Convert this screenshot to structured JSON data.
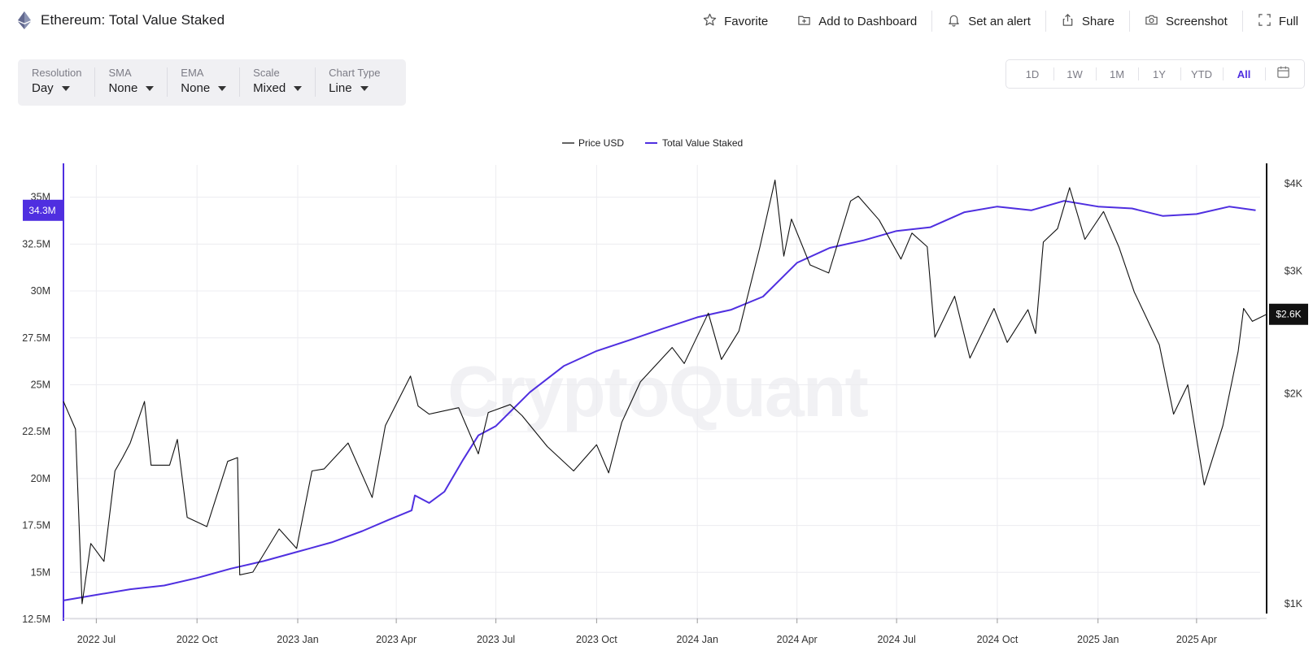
{
  "header": {
    "title": "Ethereum: Total Value Staked",
    "actions": [
      {
        "label": "Favorite",
        "icon": "star-icon"
      },
      {
        "label": "Add to Dashboard",
        "icon": "dashboard-add-icon"
      },
      {
        "label": "Set an alert",
        "icon": "bell-icon"
      },
      {
        "label": "Share",
        "icon": "share-icon"
      },
      {
        "label": "Screenshot",
        "icon": "camera-icon"
      },
      {
        "label": "Full",
        "icon": "fullscreen-icon"
      }
    ]
  },
  "settings": [
    {
      "label": "Resolution",
      "value": "Day"
    },
    {
      "label": "SMA",
      "value": "None"
    },
    {
      "label": "EMA",
      "value": "None"
    },
    {
      "label": "Scale",
      "value": "Mixed"
    },
    {
      "label": "Chart Type",
      "value": "Line"
    }
  ],
  "ranges": {
    "items": [
      "1D",
      "1W",
      "1M",
      "1Y",
      "YTD",
      "All"
    ],
    "active": "All",
    "calendar_icon": "calendar-icon"
  },
  "colors": {
    "accent": "#4f2fe0",
    "price_line": "#111111",
    "grid": "#ececf0"
  },
  "chart_data": {
    "type": "line",
    "title": "",
    "watermark": "CryptoQuant",
    "legend": {
      "placement": "top-center",
      "entries": [
        "Price USD",
        "Total Value Staked"
      ]
    },
    "x_ticks": [
      "2022 Jul",
      "2022 Oct",
      "2023 Jan",
      "2023 Apr",
      "2023 Jul",
      "2023 Oct",
      "2024 Jan",
      "2024 Apr",
      "2024 Jul",
      "2024 Oct",
      "2025 Jan",
      "2025 Apr"
    ],
    "x_range": [
      "2022-06-01",
      "2025-06-04"
    ],
    "left_axis": {
      "ticks": [
        "12.5M",
        "15M",
        "17.5M",
        "20M",
        "22.5M",
        "25M",
        "27.5M",
        "30M",
        "32.5M",
        "35M"
      ],
      "range": [
        12.5,
        36.5
      ],
      "unit": "M",
      "scale": "linear"
    },
    "right_axis": {
      "ticks": [
        "$1K",
        "$2K",
        "$3K",
        "$4K"
      ],
      "range": [
        950,
        4200
      ],
      "scale": "log"
    },
    "badges": {
      "left": "34.3M",
      "right": "$2.6K"
    },
    "grid": true,
    "series": [
      {
        "name": "Total Value Staked",
        "axis": "left",
        "color": "#4f2fe0",
        "x": [
          "2022-06-01",
          "2022-07-01",
          "2022-08-01",
          "2022-09-01",
          "2022-10-01",
          "2022-11-01",
          "2022-12-01",
          "2023-01-01",
          "2023-02-01",
          "2023-03-01",
          "2023-03-25",
          "2023-04-15",
          "2023-04-18",
          "2023-05-01",
          "2023-05-15",
          "2023-06-01",
          "2023-06-15",
          "2023-07-01",
          "2023-08-01",
          "2023-09-01",
          "2023-10-01",
          "2023-11-01",
          "2023-12-01",
          "2024-01-01",
          "2024-02-01",
          "2024-03-01",
          "2024-04-01",
          "2024-05-01",
          "2024-06-01",
          "2024-07-01",
          "2024-08-01",
          "2024-09-01",
          "2024-10-01",
          "2024-11-01",
          "2024-12-01",
          "2025-01-01",
          "2025-02-01",
          "2025-03-01",
          "2025-04-01",
          "2025-05-01",
          "2025-05-25"
        ],
        "values": [
          13.5,
          13.8,
          14.1,
          14.3,
          14.7,
          15.2,
          15.6,
          16.1,
          16.6,
          17.2,
          17.8,
          18.3,
          19.1,
          18.7,
          19.3,
          21.0,
          22.3,
          22.8,
          24.6,
          26.0,
          26.8,
          27.4,
          28.0,
          28.6,
          29.0,
          29.7,
          31.5,
          32.3,
          32.7,
          33.2,
          33.4,
          34.2,
          34.5,
          34.3,
          34.8,
          34.5,
          34.4,
          34.0,
          34.1,
          34.5,
          34.3
        ]
      },
      {
        "name": "Price USD",
        "axis": "right",
        "color": "#111111",
        "x": [
          "2022-06-01",
          "2022-06-12",
          "2022-06-18",
          "2022-06-26",
          "2022-07-08",
          "2022-07-18",
          "2022-07-25",
          "2022-08-01",
          "2022-08-14",
          "2022-08-20",
          "2022-09-06",
          "2022-09-13",
          "2022-09-22",
          "2022-10-10",
          "2022-10-29",
          "2022-11-07",
          "2022-11-09",
          "2022-11-21",
          "2022-12-15",
          "2022-12-31",
          "2023-01-14",
          "2023-01-25",
          "2023-02-16",
          "2023-03-10",
          "2023-03-22",
          "2023-04-14",
          "2023-04-21",
          "2023-05-01",
          "2023-05-28",
          "2023-06-15",
          "2023-06-24",
          "2023-07-14",
          "2023-07-25",
          "2023-08-17",
          "2023-09-10",
          "2023-10-01",
          "2023-10-12",
          "2023-10-24",
          "2023-11-10",
          "2023-12-09",
          "2023-12-20",
          "2024-01-11",
          "2024-01-23",
          "2024-02-08",
          "2024-02-27",
          "2024-03-12",
          "2024-03-20",
          "2024-03-27",
          "2024-04-13",
          "2024-04-30",
          "2024-05-20",
          "2024-05-27",
          "2024-06-15",
          "2024-07-05",
          "2024-07-15",
          "2024-07-29",
          "2024-08-05",
          "2024-08-23",
          "2024-09-06",
          "2024-09-28",
          "2024-10-10",
          "2024-10-29",
          "2024-11-05",
          "2024-11-12",
          "2024-11-25",
          "2024-12-06",
          "2024-12-20",
          "2025-01-06",
          "2025-01-20",
          "2025-02-03",
          "2025-02-26",
          "2025-03-11",
          "2025-03-24",
          "2025-04-08",
          "2025-04-25",
          "2025-05-09",
          "2025-05-14",
          "2025-05-22",
          "2025-06-04"
        ],
        "values": [
          1950,
          1780,
          1000,
          1220,
          1150,
          1550,
          1620,
          1700,
          1950,
          1580,
          1580,
          1720,
          1330,
          1290,
          1600,
          1620,
          1100,
          1110,
          1280,
          1200,
          1550,
          1560,
          1700,
          1420,
          1800,
          2120,
          1920,
          1870,
          1910,
          1640,
          1880,
          1930,
          1860,
          1680,
          1550,
          1690,
          1540,
          1820,
          2080,
          2330,
          2210,
          2610,
          2240,
          2460,
          3240,
          4050,
          3150,
          3560,
          3060,
          2980,
          3780,
          3840,
          3550,
          3120,
          3400,
          3250,
          2410,
          2760,
          2250,
          2650,
          2370,
          2640,
          2440,
          3300,
          3450,
          3950,
          3330,
          3650,
          3250,
          2800,
          2350,
          1870,
          2060,
          1480,
          1800,
          2300,
          2650,
          2540,
          2600
        ]
      }
    ]
  }
}
